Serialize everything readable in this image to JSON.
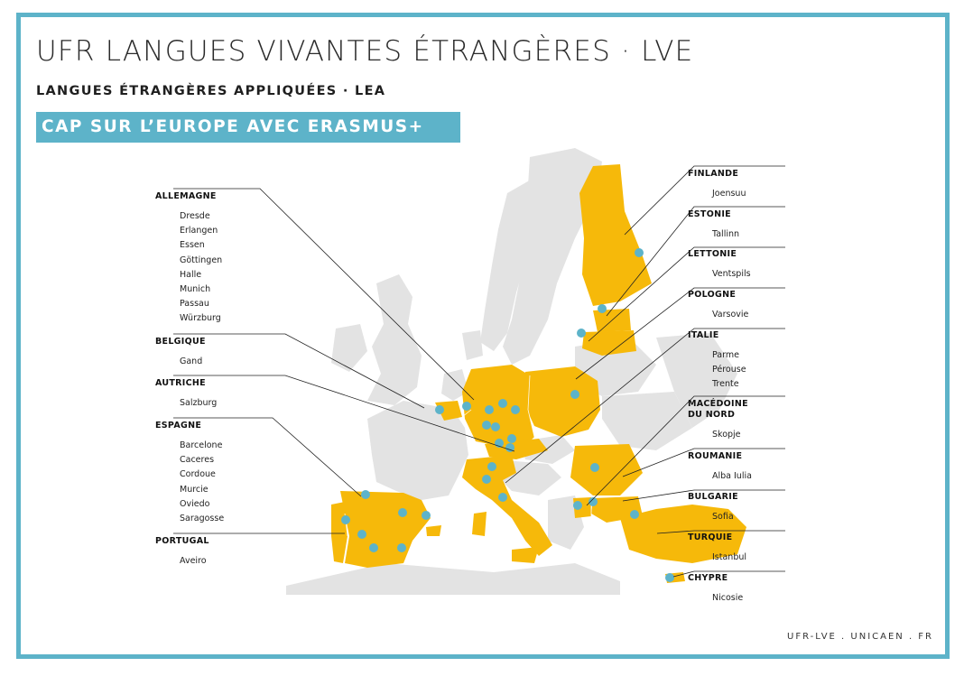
{
  "header": {
    "title": "UFR LANGUES VIVANTES ÉTRANGÈRES · LVE",
    "subtitle": "LANGUES ÉTRANGÈRES APPLIQUÉES · LEA",
    "banner": "CAP SUR L’EUROPE AVEC ERASMUS+"
  },
  "colors": {
    "accent": "#5db3c9",
    "partner_country": "#f6b90a",
    "other_country": "#e3e3e3",
    "city_marker": "#5db3c9"
  },
  "left_countries": [
    {
      "name": "ALLEMAGNE",
      "cities": [
        "Dresde",
        "Erlangen",
        "Essen",
        "Göttingen",
        "Halle",
        "Munich",
        "Passau",
        "Würzburg"
      ]
    },
    {
      "name": "BELGIQUE",
      "cities": [
        "Gand"
      ]
    },
    {
      "name": "AUTRICHE",
      "cities": [
        "Salzburg"
      ]
    },
    {
      "name": "ESPAGNE",
      "cities": [
        "Barcelone",
        "Caceres",
        "Cordoue",
        "Murcie",
        "Oviedo",
        "Saragosse"
      ]
    },
    {
      "name": "PORTUGAL",
      "cities": [
        "Aveiro"
      ]
    }
  ],
  "right_countries": [
    {
      "name": "FINLANDE",
      "cities": [
        "Joensuu"
      ]
    },
    {
      "name": "ESTONIE",
      "cities": [
        "Tallinn"
      ]
    },
    {
      "name": "LETTONIE",
      "cities": [
        "Ventspils"
      ]
    },
    {
      "name": "POLOGNE",
      "cities": [
        "Varsovie"
      ]
    },
    {
      "name": "ITALIE",
      "cities": [
        "Parme",
        "Pérouse",
        "Trente"
      ]
    },
    {
      "name": "MACÉDOINE",
      "name2": "DU NORD",
      "cities": [
        "Skopje"
      ]
    },
    {
      "name": "ROUMANIE",
      "cities": [
        "Alba Iulia"
      ]
    },
    {
      "name": "BULGARIE",
      "cities": [
        "Sofia"
      ]
    },
    {
      "name": "TURQUIE",
      "cities": [
        "Istanbul"
      ]
    },
    {
      "name": "CHYPRE",
      "cities": [
        "Nicosie"
      ]
    }
  ],
  "footer": {
    "url": "UFR-LVE . UNICAEN . FR"
  }
}
